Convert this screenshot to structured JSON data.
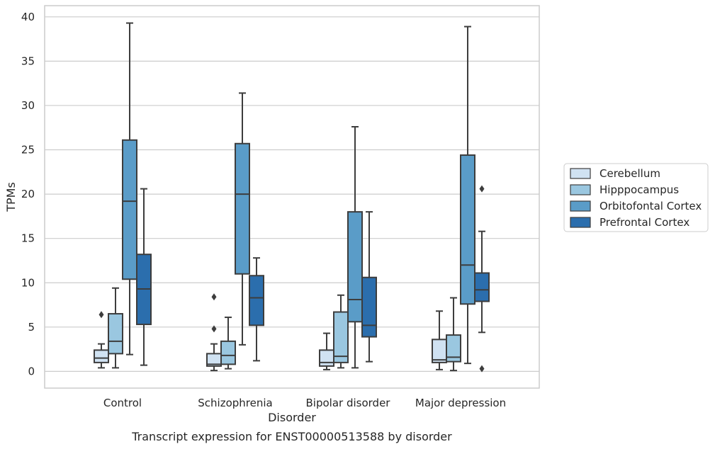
{
  "chart_data": {
    "type": "box",
    "title": "",
    "xlabel": "Disorder",
    "ylabel": "TPMs",
    "caption": "Transcript expression for ENST00000513588 by disorder",
    "ylim": [
      -1.8,
      41.2
    ],
    "yticks": [
      0,
      5,
      10,
      15,
      20,
      25,
      30,
      35,
      40
    ],
    "grid": "horizontal",
    "legend_position": "right",
    "categories": [
      "Control",
      "Schizophrenia",
      "Bipolar disorder",
      "Major depression"
    ],
    "series": [
      {
        "name": "Cerebellum",
        "color": "#d0e2f2",
        "boxes": [
          {
            "whisker_low": 0.4,
            "q1": 1.0,
            "median": 1.5,
            "q3": 2.4,
            "whisker_high": 3.1,
            "outliers": [
              6.4
            ]
          },
          {
            "whisker_low": 0.1,
            "q1": 0.6,
            "median": 0.8,
            "q3": 2.0,
            "whisker_high": 3.1,
            "outliers": [
              8.4,
              4.8
            ]
          },
          {
            "whisker_low": 0.2,
            "q1": 0.6,
            "median": 1.0,
            "q3": 2.4,
            "whisker_high": 4.3,
            "outliers": []
          },
          {
            "whisker_low": 0.2,
            "q1": 1.0,
            "median": 1.3,
            "q3": 3.6,
            "whisker_high": 6.8,
            "outliers": []
          }
        ]
      },
      {
        "name": "Hipppocampus",
        "color": "#9ac7e0",
        "boxes": [
          {
            "whisker_low": 0.4,
            "q1": 2.0,
            "median": 3.4,
            "q3": 6.5,
            "whisker_high": 9.4,
            "outliers": []
          },
          {
            "whisker_low": 0.3,
            "q1": 0.8,
            "median": 1.8,
            "q3": 3.4,
            "whisker_high": 6.1,
            "outliers": []
          },
          {
            "whisker_low": 0.4,
            "q1": 1.0,
            "median": 1.7,
            "q3": 6.7,
            "whisker_high": 8.6,
            "outliers": []
          },
          {
            "whisker_low": 0.1,
            "q1": 1.1,
            "median": 1.6,
            "q3": 4.1,
            "whisker_high": 8.3,
            "outliers": []
          }
        ]
      },
      {
        "name": "Orbitofontal Cortex",
        "color": "#5a9cc8",
        "boxes": [
          {
            "whisker_low": 1.9,
            "q1": 10.4,
            "median": 19.2,
            "q3": 26.1,
            "whisker_high": 39.3,
            "outliers": []
          },
          {
            "whisker_low": 3.0,
            "q1": 11.0,
            "median": 20.0,
            "q3": 25.7,
            "whisker_high": 31.4,
            "outliers": []
          },
          {
            "whisker_low": 0.4,
            "q1": 5.6,
            "median": 8.1,
            "q3": 18.0,
            "whisker_high": 27.6,
            "outliers": []
          },
          {
            "whisker_low": 0.9,
            "q1": 7.6,
            "median": 12.0,
            "q3": 24.4,
            "whisker_high": 38.9,
            "outliers": []
          }
        ]
      },
      {
        "name": "Prefrontal Cortex",
        "color": "#2b6ead",
        "boxes": [
          {
            "whisker_low": 0.7,
            "q1": 5.3,
            "median": 9.3,
            "q3": 13.2,
            "whisker_high": 20.6,
            "outliers": []
          },
          {
            "whisker_low": 1.2,
            "q1": 5.2,
            "median": 8.3,
            "q3": 10.8,
            "whisker_high": 12.8,
            "outliers": []
          },
          {
            "whisker_low": 1.1,
            "q1": 3.9,
            "median": 5.2,
            "q3": 10.6,
            "whisker_high": 18.0,
            "outliers": []
          },
          {
            "whisker_low": 4.4,
            "q1": 7.9,
            "median": 9.2,
            "q3": 11.1,
            "whisker_high": 15.8,
            "outliers": [
              20.6,
              0.3
            ]
          }
        ]
      }
    ]
  }
}
